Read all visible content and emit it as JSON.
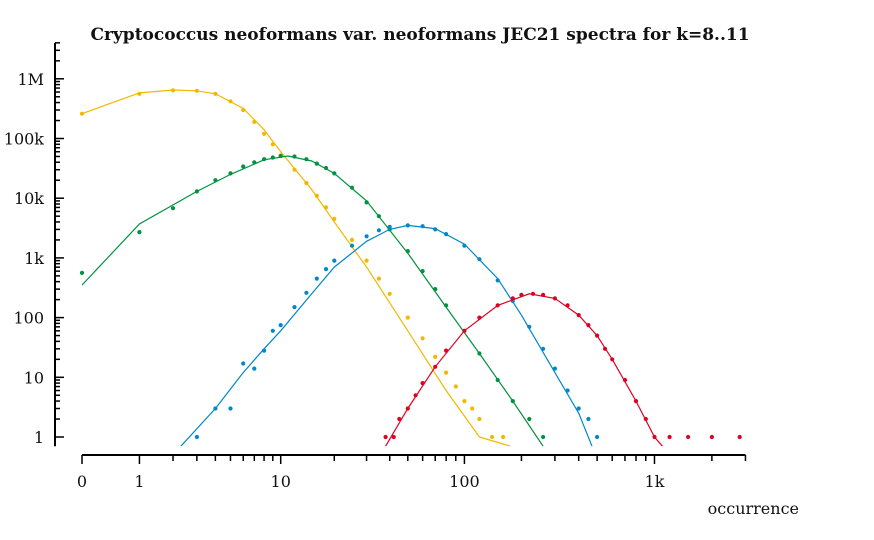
{
  "chart_data": {
    "type": "scatter",
    "title": "Cryptococcus neoformans var. neoformans JEC21 spectra for k=8..11",
    "xlabel": "occurrence",
    "ylabel": "",
    "x_scale": "log(1+x)",
    "y_scale": "log",
    "xlim": [
      0,
      3000
    ],
    "ylim": [
      0.7,
      4000000
    ],
    "x_ticks": [
      {
        "value": 0,
        "label": "0"
      },
      {
        "value": 1,
        "label": "1"
      },
      {
        "value": 10,
        "label": "10"
      },
      {
        "value": 100,
        "label": "100"
      },
      {
        "value": 1000,
        "label": "1k"
      }
    ],
    "y_ticks": [
      {
        "value": 1,
        "label": "1"
      },
      {
        "value": 10,
        "label": "10"
      },
      {
        "value": 100,
        "label": "100"
      },
      {
        "value": 1000,
        "label": "1k"
      },
      {
        "value": 10000,
        "label": "10k"
      },
      {
        "value": 100000,
        "label": "100k"
      },
      {
        "value": 1000000,
        "label": "1M"
      }
    ],
    "grid": false,
    "legend": "none",
    "series": [
      {
        "color": "#f2b800",
        "points": [
          [
            0,
            260000
          ],
          [
            1,
            560000
          ],
          [
            2,
            640000
          ],
          [
            3,
            630000
          ],
          [
            4,
            560000
          ],
          [
            5,
            420000
          ],
          [
            6,
            300000
          ],
          [
            7,
            190000
          ],
          [
            8,
            120000
          ],
          [
            9,
            80000
          ],
          [
            10,
            52000
          ],
          [
            12,
            30000
          ],
          [
            14,
            18000
          ],
          [
            16,
            11000
          ],
          [
            18,
            7000
          ],
          [
            20,
            4500
          ],
          [
            25,
            2000
          ],
          [
            30,
            900
          ],
          [
            35,
            450
          ],
          [
            40,
            250
          ],
          [
            50,
            100
          ],
          [
            60,
            45
          ],
          [
            70,
            22
          ],
          [
            80,
            12
          ],
          [
            90,
            7
          ],
          [
            100,
            4
          ],
          [
            110,
            3
          ],
          [
            120,
            2
          ],
          [
            140,
            1
          ],
          [
            160,
            1
          ]
        ],
        "fit": [
          [
            0,
            260000
          ],
          [
            1,
            580000
          ],
          [
            2,
            650000
          ],
          [
            3,
            630000
          ],
          [
            4,
            560000
          ],
          [
            6,
            320000
          ],
          [
            8,
            140000
          ],
          [
            10,
            60000
          ],
          [
            15,
            14000
          ],
          [
            20,
            4000
          ],
          [
            30,
            700
          ],
          [
            50,
            60
          ],
          [
            80,
            6
          ],
          [
            120,
            1
          ],
          [
            175,
            0.7
          ]
        ]
      },
      {
        "color": "#00923f",
        "points": [
          [
            0,
            560
          ],
          [
            1,
            2700
          ],
          [
            2,
            6800
          ],
          [
            3,
            13000
          ],
          [
            4,
            20000
          ],
          [
            5,
            26000
          ],
          [
            6,
            34000
          ],
          [
            7,
            40000
          ],
          [
            8,
            45000
          ],
          [
            9,
            48000
          ],
          [
            10,
            51000
          ],
          [
            12,
            50000
          ],
          [
            14,
            45000
          ],
          [
            16,
            38000
          ],
          [
            18,
            32000
          ],
          [
            20,
            26000
          ],
          [
            25,
            15000
          ],
          [
            30,
            8500
          ],
          [
            35,
            5000
          ],
          [
            40,
            3000
          ],
          [
            50,
            1300
          ],
          [
            60,
            600
          ],
          [
            70,
            300
          ],
          [
            80,
            160
          ],
          [
            100,
            60
          ],
          [
            120,
            25
          ],
          [
            150,
            9
          ],
          [
            180,
            4
          ],
          [
            220,
            2
          ],
          [
            260,
            1
          ]
        ],
        "fit": [
          [
            0,
            350
          ],
          [
            1,
            3700
          ],
          [
            3,
            13000
          ],
          [
            5,
            25000
          ],
          [
            8,
            44000
          ],
          [
            11,
            51000
          ],
          [
            15,
            42000
          ],
          [
            20,
            26000
          ],
          [
            30,
            9000
          ],
          [
            50,
            1200
          ],
          [
            80,
            150
          ],
          [
            120,
            25
          ],
          [
            180,
            4
          ],
          [
            260,
            0.7
          ]
        ]
      },
      {
        "color": "#0088c8",
        "points": [
          [
            3,
            1
          ],
          [
            4,
            3
          ],
          [
            5,
            3
          ],
          [
            6,
            17
          ],
          [
            7,
            14
          ],
          [
            8,
            28
          ],
          [
            9,
            60
          ],
          [
            10,
            75
          ],
          [
            12,
            150
          ],
          [
            14,
            260
          ],
          [
            16,
            450
          ],
          [
            18,
            650
          ],
          [
            20,
            900
          ],
          [
            25,
            1600
          ],
          [
            30,
            2300
          ],
          [
            35,
            2900
          ],
          [
            40,
            3300
          ],
          [
            50,
            3500
          ],
          [
            60,
            3400
          ],
          [
            70,
            3000
          ],
          [
            80,
            2500
          ],
          [
            100,
            1600
          ],
          [
            120,
            950
          ],
          [
            150,
            420
          ],
          [
            180,
            190
          ],
          [
            220,
            70
          ],
          [
            260,
            30
          ],
          [
            300,
            14
          ],
          [
            350,
            6
          ],
          [
            400,
            3
          ],
          [
            450,
            2
          ],
          [
            500,
            1
          ]
        ],
        "fit": [
          [
            2.3,
            0.7
          ],
          [
            4,
            3
          ],
          [
            6,
            12
          ],
          [
            8,
            30
          ],
          [
            10,
            60
          ],
          [
            15,
            250
          ],
          [
            20,
            700
          ],
          [
            30,
            1900
          ],
          [
            40,
            3000
          ],
          [
            50,
            3500
          ],
          [
            70,
            3100
          ],
          [
            100,
            1700
          ],
          [
            150,
            450
          ],
          [
            200,
            110
          ],
          [
            300,
            12
          ],
          [
            400,
            2.5
          ],
          [
            470,
            0.7
          ]
        ]
      },
      {
        "color": "#e00022",
        "points": [
          [
            38,
            1
          ],
          [
            42,
            1
          ],
          [
            45,
            2
          ],
          [
            50,
            3
          ],
          [
            55,
            5
          ],
          [
            60,
            8
          ],
          [
            70,
            15
          ],
          [
            80,
            28
          ],
          [
            100,
            60
          ],
          [
            120,
            100
          ],
          [
            150,
            160
          ],
          [
            180,
            210
          ],
          [
            200,
            240
          ],
          [
            230,
            250
          ],
          [
            260,
            240
          ],
          [
            300,
            210
          ],
          [
            350,
            160
          ],
          [
            400,
            110
          ],
          [
            450,
            75
          ],
          [
            500,
            50
          ],
          [
            550,
            30
          ],
          [
            600,
            20
          ],
          [
            700,
            9
          ],
          [
            800,
            4
          ],
          [
            900,
            2
          ],
          [
            1000,
            1
          ],
          [
            1200,
            1
          ],
          [
            1500,
            1
          ],
          [
            2000,
            1
          ],
          [
            2800,
            1
          ]
        ],
        "fit": [
          [
            38,
            0.7
          ],
          [
            50,
            3
          ],
          [
            70,
            15
          ],
          [
            100,
            60
          ],
          [
            150,
            160
          ],
          [
            220,
            250
          ],
          [
            300,
            210
          ],
          [
            400,
            110
          ],
          [
            500,
            50
          ],
          [
            600,
            20
          ],
          [
            800,
            4
          ],
          [
            1000,
            1
          ],
          [
            1100,
            0.7
          ]
        ]
      }
    ]
  }
}
